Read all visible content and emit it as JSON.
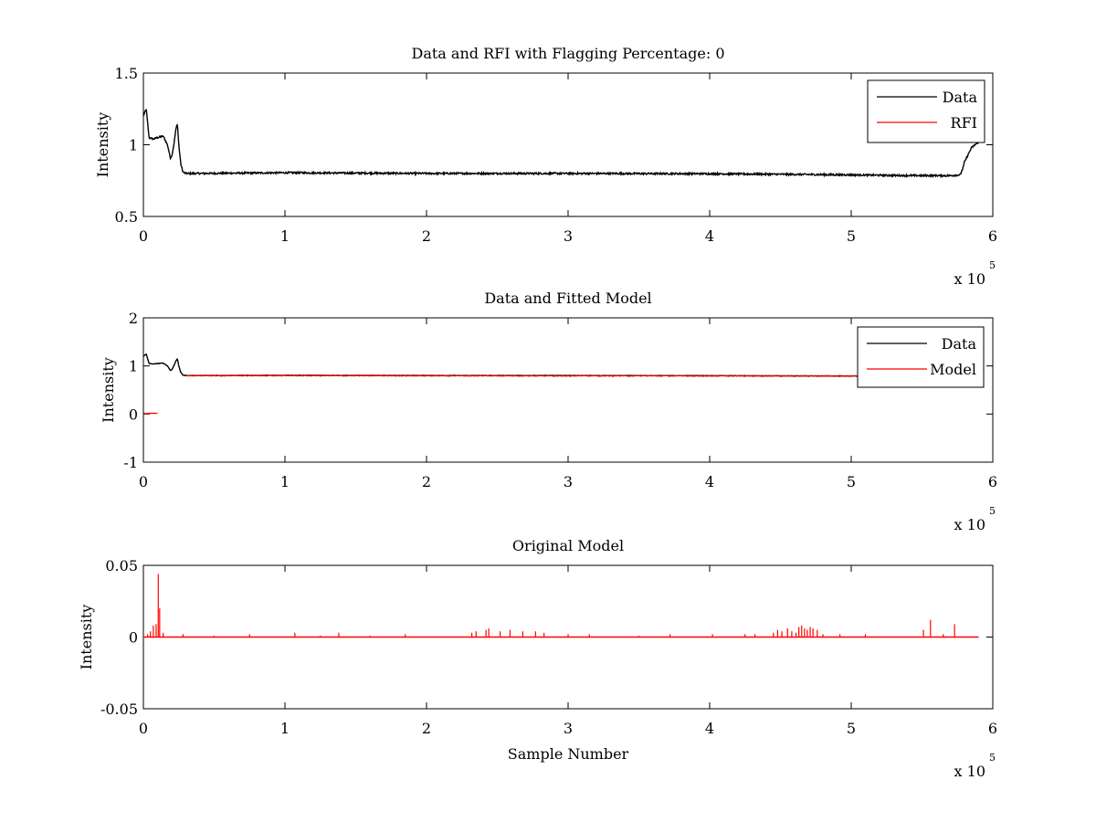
{
  "chart_data": [
    {
      "type": "line",
      "title": "Data and RFI with Flagging Percentage: 0",
      "xlabel": "",
      "ylabel": "Intensity",
      "xlim": [
        0,
        600000
      ],
      "ylim": [
        0.5,
        1.5
      ],
      "xticks": [
        0,
        100000,
        200000,
        300000,
        400000,
        500000,
        600000
      ],
      "xtick_labels": [
        "0",
        "1",
        "2",
        "3",
        "4",
        "5",
        "6"
      ],
      "yticks": [
        0.5,
        1,
        1.5
      ],
      "ytick_labels": [
        "0.5",
        "1",
        "1.5"
      ],
      "x_exponent_label": {
        "base": "x 10",
        "power": "5"
      },
      "legend": {
        "location": "top-right",
        "entries": [
          "Data",
          "RFI"
        ]
      },
      "grid": false,
      "series": [
        {
          "name": "Data",
          "color": "#000000",
          "x": [
            0,
            2000,
            4000,
            7000,
            10000,
            14000,
            17000,
            19000,
            20000,
            21500,
            23000,
            24000,
            25000,
            26500,
            28000,
            30000,
            40000,
            100000,
            200000,
            300000,
            400000,
            500000,
            540000,
            570000,
            577000,
            579000,
            580000,
            582000,
            585000,
            590000
          ],
          "y": [
            1.2,
            1.25,
            1.05,
            1.04,
            1.05,
            1.06,
            1.0,
            0.91,
            0.92,
            1.0,
            1.11,
            1.15,
            1.0,
            0.86,
            0.81,
            0.8,
            0.8,
            0.805,
            0.8,
            0.8,
            0.798,
            0.79,
            0.785,
            0.785,
            0.79,
            0.84,
            0.88,
            0.92,
            0.98,
            1.02
          ],
          "noise": 0.006
        },
        {
          "name": "RFI",
          "color": "#ff0000",
          "x": [],
          "y": []
        }
      ]
    },
    {
      "type": "line",
      "title": "Data and Fitted Model",
      "xlabel": "",
      "ylabel": "Intensity",
      "xlim": [
        0,
        600000
      ],
      "ylim": [
        -1,
        2
      ],
      "xticks": [
        0,
        100000,
        200000,
        300000,
        400000,
        500000,
        600000
      ],
      "xtick_labels": [
        "0",
        "1",
        "2",
        "3",
        "4",
        "5",
        "6"
      ],
      "yticks": [
        -1,
        0,
        1,
        2
      ],
      "ytick_labels": [
        "-1",
        "0",
        "1",
        "2"
      ],
      "x_exponent_label": {
        "base": "x 10",
        "power": "5"
      },
      "legend": {
        "location": "top-right",
        "entries": [
          "Data",
          "Model"
        ]
      },
      "grid": false,
      "series": [
        {
          "name": "Data",
          "color": "#000000",
          "x": [
            0,
            2000,
            4000,
            7000,
            10000,
            14000,
            17000,
            19000,
            20000,
            21500,
            23000,
            24000,
            25000,
            26500,
            28000,
            30000,
            40000,
            100000,
            200000,
            300000,
            400000,
            500000,
            520000
          ],
          "y": [
            1.2,
            1.25,
            1.05,
            1.04,
            1.05,
            1.06,
            1.0,
            0.91,
            0.92,
            1.0,
            1.11,
            1.15,
            1.0,
            0.86,
            0.81,
            0.8,
            0.8,
            0.805,
            0.8,
            0.8,
            0.798,
            0.79,
            0.785
          ],
          "noise": 0.004
        },
        {
          "name": "Model",
          "color": "#ff0000",
          "segments": [
            {
              "x": [
                0,
                10000
              ],
              "y": [
                0.01,
                0.01
              ]
            },
            {
              "x": [
                30000,
                520000
              ],
              "y": [
                0.8,
                0.79
              ]
            }
          ]
        }
      ]
    },
    {
      "type": "line",
      "title": "Original Model",
      "xlabel": "Sample Number",
      "ylabel": "Intensity",
      "xlim": [
        0,
        600000
      ],
      "ylim": [
        -0.05,
        0.05
      ],
      "xticks": [
        0,
        100000,
        200000,
        300000,
        400000,
        500000,
        600000
      ],
      "xtick_labels": [
        "0",
        "1",
        "2",
        "3",
        "4",
        "5",
        "6"
      ],
      "yticks": [
        -0.05,
        0,
        0.05
      ],
      "ytick_labels": [
        "-0.05",
        "0",
        "0.05"
      ],
      "x_exponent_label": {
        "base": "x 10",
        "power": "5"
      },
      "grid": false,
      "series": [
        {
          "name": "",
          "color": "#ff0000",
          "baseline": {
            "x": [
              0,
              590000
            ],
            "y": 0
          },
          "spikes": {
            "x": [
              3000,
              5000,
              7000,
              9000,
              10500,
              11500,
              14000,
              28000,
              50000,
              75000,
              107000,
              125000,
              138000,
              160000,
              185000,
              232000,
              235000,
              242000,
              244000,
              252000,
              259000,
              268000,
              277000,
              283000,
              300000,
              315000,
              350000,
              372000,
              402000,
              425000,
              432000,
              445000,
              448000,
              451000,
              455000,
              458000,
              461000,
              463000,
              465000,
              467000,
              469000,
              471000,
              473000,
              476000,
              480000,
              492000,
              510000,
              551000,
              556000,
              565000,
              573000
            ],
            "y": [
              0.002,
              0.004,
              0.008,
              0.009,
              0.044,
              0.02,
              0.003,
              0.002,
              0.001,
              0.002,
              0.003,
              0.001,
              0.003,
              0.001,
              0.002,
              0.003,
              0.004,
              0.005,
              0.006,
              0.004,
              0.005,
              0.004,
              0.004,
              0.003,
              0.002,
              0.002,
              0.001,
              0.002,
              0.002,
              0.002,
              0.002,
              0.003,
              0.005,
              0.004,
              0.006,
              0.004,
              0.003,
              0.007,
              0.008,
              0.006,
              0.005,
              0.007,
              0.006,
              0.005,
              0.002,
              0.002,
              0.002,
              0.005,
              0.012,
              0.002,
              0.009
            ]
          }
        }
      ]
    }
  ]
}
